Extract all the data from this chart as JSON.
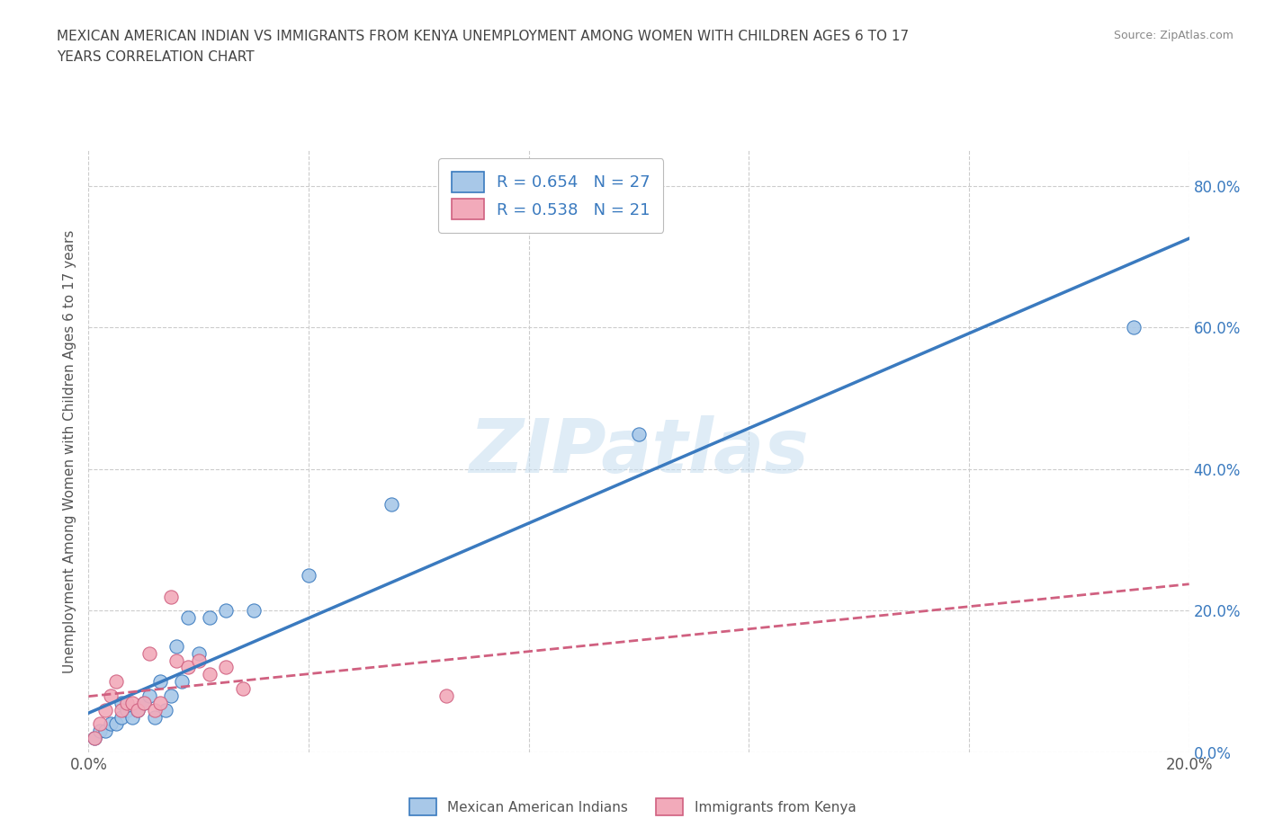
{
  "title_line1": "MEXICAN AMERICAN INDIAN VS IMMIGRANTS FROM KENYA UNEMPLOYMENT AMONG WOMEN WITH CHILDREN AGES 6 TO 17",
  "title_line2": "YEARS CORRELATION CHART",
  "source": "Source: ZipAtlas.com",
  "ylabel": "Unemployment Among Women with Children Ages 6 to 17 years",
  "xlim": [
    0.0,
    0.2
  ],
  "ylim": [
    0.0,
    0.85
  ],
  "xticks": [
    0.0,
    0.04,
    0.08,
    0.12,
    0.16,
    0.2
  ],
  "ytick_positions": [
    0.0,
    0.2,
    0.4,
    0.6,
    0.8
  ],
  "right_ytick_labels": [
    "0.0%",
    "20.0%",
    "40.0%",
    "60.0%",
    "80.0%"
  ],
  "xtick_labels": [
    "0.0%",
    "",
    "",
    "",
    "",
    "20.0%"
  ],
  "blue_R": 0.654,
  "blue_N": 27,
  "pink_R": 0.538,
  "pink_N": 21,
  "blue_color": "#a8c8e8",
  "pink_color": "#f2aaba",
  "blue_line_color": "#3a7abf",
  "pink_line_color": "#d06080",
  "watermark": "ZIPatlas",
  "blue_scatter_x": [
    0.001,
    0.002,
    0.003,
    0.004,
    0.005,
    0.006,
    0.006,
    0.007,
    0.008,
    0.009,
    0.01,
    0.011,
    0.012,
    0.013,
    0.014,
    0.015,
    0.016,
    0.017,
    0.018,
    0.02,
    0.022,
    0.025,
    0.03,
    0.04,
    0.055,
    0.1,
    0.19
  ],
  "blue_scatter_y": [
    0.02,
    0.03,
    0.03,
    0.04,
    0.04,
    0.05,
    0.07,
    0.06,
    0.05,
    0.06,
    0.07,
    0.08,
    0.05,
    0.1,
    0.06,
    0.08,
    0.15,
    0.1,
    0.19,
    0.14,
    0.19,
    0.2,
    0.2,
    0.25,
    0.35,
    0.45,
    0.6
  ],
  "pink_scatter_x": [
    0.001,
    0.002,
    0.003,
    0.004,
    0.005,
    0.006,
    0.007,
    0.008,
    0.009,
    0.01,
    0.011,
    0.012,
    0.013,
    0.015,
    0.016,
    0.018,
    0.02,
    0.022,
    0.025,
    0.028,
    0.065
  ],
  "pink_scatter_y": [
    0.02,
    0.04,
    0.06,
    0.08,
    0.1,
    0.06,
    0.07,
    0.07,
    0.06,
    0.07,
    0.14,
    0.06,
    0.07,
    0.22,
    0.13,
    0.12,
    0.13,
    0.11,
    0.12,
    0.09,
    0.08
  ],
  "background_color": "#ffffff",
  "grid_color": "#cccccc"
}
